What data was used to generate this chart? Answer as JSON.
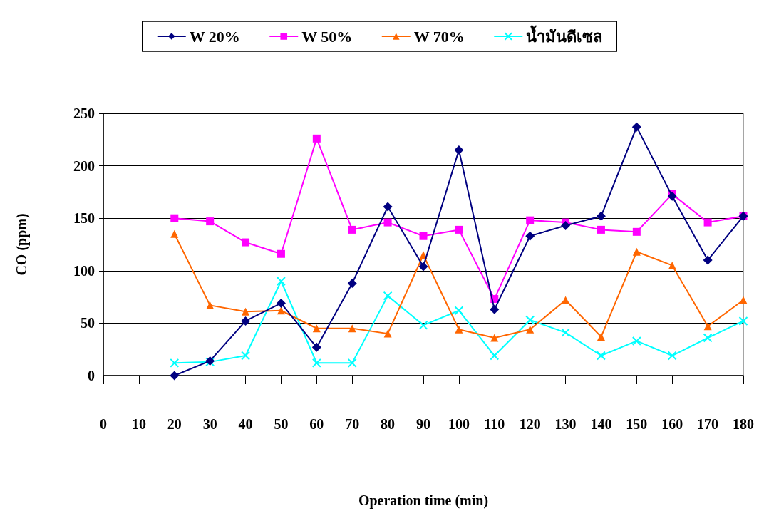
{
  "chart_data": {
    "type": "line",
    "xlabel": "Operation time (min)",
    "ylabel": "CO (ppm)",
    "x": [
      20,
      30,
      40,
      50,
      60,
      70,
      80,
      90,
      100,
      110,
      120,
      130,
      140,
      150,
      160,
      170,
      180
    ],
    "xlim": [
      0,
      180
    ],
    "xticks": [
      0,
      10,
      20,
      30,
      40,
      50,
      60,
      70,
      80,
      90,
      100,
      110,
      120,
      130,
      140,
      150,
      160,
      170,
      180
    ],
    "ylim": [
      0,
      250
    ],
    "yticks": [
      0,
      50,
      100,
      150,
      200,
      250
    ],
    "grid": "y",
    "legend": "top",
    "line_style": "solid",
    "series": [
      {
        "name": "W 20%",
        "color": "#000080",
        "marker": "diamond",
        "values": [
          0,
          14,
          52,
          69,
          27,
          88,
          161,
          104,
          215,
          63,
          133,
          143,
          152,
          237,
          171,
          110,
          152
        ]
      },
      {
        "name": "W 50%",
        "color": "#ff00ff",
        "marker": "square",
        "values": [
          150,
          147,
          127,
          116,
          226,
          139,
          146,
          133,
          139,
          73,
          148,
          146,
          139,
          137,
          173,
          146,
          152
        ]
      },
      {
        "name": "W 70%",
        "color": "#ff6600",
        "marker": "triangle",
        "values": [
          135,
          67,
          61,
          62,
          45,
          45,
          40,
          115,
          44,
          36,
          44,
          72,
          37,
          118,
          105,
          47,
          72
        ]
      },
      {
        "name": "น้ำมันดีเซล",
        "color": "#00ffff",
        "marker": "cross",
        "values": [
          12,
          13,
          19,
          90,
          12,
          12,
          76,
          48,
          62,
          19,
          53,
          41,
          19,
          33,
          19,
          36,
          52
        ]
      }
    ]
  }
}
